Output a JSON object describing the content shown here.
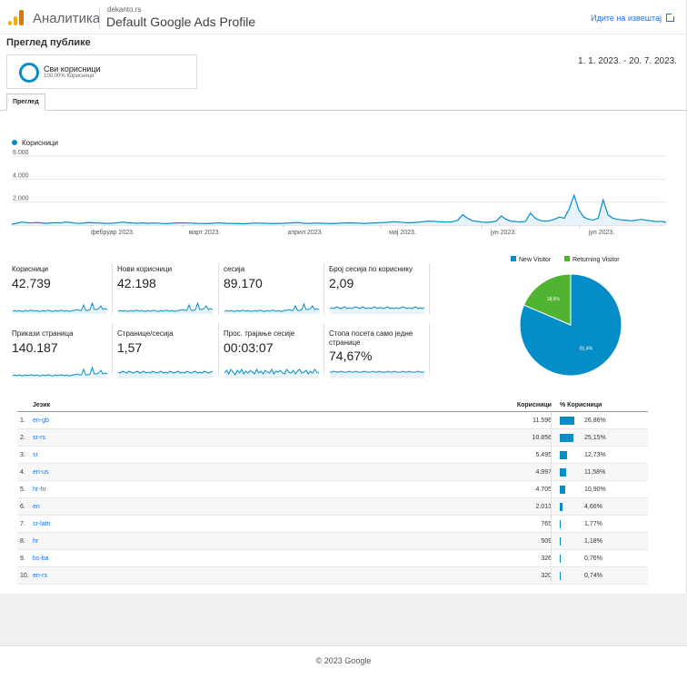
{
  "header": {
    "app_name": "Аналитика",
    "account": "dekanto.rs",
    "property": "Default Google Ads Profile",
    "goto_report": "Идите на извештај",
    "colors": {
      "logo_light": "#fbbc04",
      "logo_dark": "#f9ab00",
      "link": "#1a73e8"
    }
  },
  "page_title": "Преглед публике",
  "segment": {
    "name": "Сви корисници",
    "share": "100,00% Корисници"
  },
  "date_range": "1. 1. 2023. - 20. 7. 2023.",
  "tabs": [
    "Преглед"
  ],
  "chart_data": [
    {
      "type": "line",
      "legend": [
        "Корисници"
      ],
      "x_tick_labels": [
        "фебруар 2023.",
        "март 2023.",
        "април 2023.",
        "мај 2023.",
        "јун 2023.",
        "јул 2023."
      ],
      "y_tick_labels": [
        "2.000",
        "4.000",
        "6.000"
      ],
      "ylim": [
        0,
        6000
      ],
      "grid": true,
      "color": "#058dc7",
      "series": [
        {
          "name": "Корисници",
          "values": [
            80,
            160,
            250,
            220,
            180,
            230,
            200,
            150,
            190,
            210,
            180,
            260,
            240,
            170,
            140,
            190,
            230,
            200,
            180,
            160,
            150,
            170,
            210,
            260,
            200,
            180,
            160,
            200,
            150,
            180,
            170,
            140,
            130,
            160,
            190,
            200,
            180,
            170,
            150,
            140,
            130,
            150,
            180,
            190,
            160,
            150,
            140,
            130,
            120,
            150,
            180,
            170,
            160,
            140,
            130,
            150,
            160,
            180,
            200,
            220,
            170,
            150,
            160,
            180,
            160,
            140,
            130,
            150,
            170,
            190,
            200,
            180,
            160,
            150,
            170,
            190,
            210,
            230,
            260,
            300,
            250,
            220,
            200,
            230,
            260,
            300,
            350,
            330,
            300,
            280,
            260,
            300,
            420,
            900,
            600,
            380,
            320,
            260,
            240,
            280,
            360,
            800,
            500,
            350,
            300,
            280,
            330,
            1050,
            600,
            400,
            340,
            380,
            520,
            700,
            600,
            1400,
            2600,
            1300,
            700,
            500,
            450,
            600,
            2200,
            900,
            600,
            500,
            450,
            400,
            380,
            450,
            500,
            420,
            360,
            300,
            330,
            240
          ]
        }
      ]
    },
    {
      "type": "pie",
      "legend": [
        "New Visitor",
        "Returning Visitor"
      ],
      "values": [
        81.4,
        18.6
      ],
      "slice_labels": [
        "81,4%",
        "18,6%"
      ],
      "colors": [
        "#058dc7",
        "#50b432"
      ]
    }
  ],
  "metrics": [
    {
      "label": "Корисници",
      "value": "42.739"
    },
    {
      "label": "Нови корисници",
      "value": "42.198"
    },
    {
      "label": "сесија",
      "value": "89.170"
    },
    {
      "label": "Број сесија по кориснику",
      "value": "2,09"
    },
    {
      "label": "Прикази страница",
      "value": "140.187"
    },
    {
      "label": "Странице/сесија",
      "value": "1,57"
    },
    {
      "label": "Прос. трајање сесије",
      "value": "00:03:07"
    },
    {
      "label": "Стопа посета само једне странице",
      "value": "74,67%"
    }
  ],
  "table": {
    "headers": {
      "dimension": "Језик",
      "metric": "Корисници",
      "share": "% Корисници"
    },
    "rows": [
      {
        "idx": "1.",
        "lang": "en-gb",
        "users": "11.596",
        "pct": "26,86%",
        "share": 26.86
      },
      {
        "idx": "2.",
        "lang": "sr-rs",
        "users": "10.856",
        "pct": "25,15%",
        "share": 25.15
      },
      {
        "idx": "3.",
        "lang": "sr",
        "users": "5.495",
        "pct": "12,73%",
        "share": 12.73
      },
      {
        "idx": "4.",
        "lang": "en-us",
        "users": "4.997",
        "pct": "11,58%",
        "share": 11.58
      },
      {
        "idx": "5.",
        "lang": "hr-hr",
        "users": "4.705",
        "pct": "10,90%",
        "share": 10.9
      },
      {
        "idx": "6.",
        "lang": "en",
        "users": "2.013",
        "pct": "4,66%",
        "share": 4.66
      },
      {
        "idx": "7.",
        "lang": "sr-latn",
        "users": "765",
        "pct": "1,77%",
        "share": 1.77
      },
      {
        "idx": "8.",
        "lang": "hr",
        "users": "509",
        "pct": "1,18%",
        "share": 1.18
      },
      {
        "idx": "9.",
        "lang": "bs-ba",
        "users": "326",
        "pct": "0,76%",
        "share": 0.76
      },
      {
        "idx": "10.",
        "lang": "en-rs",
        "users": "320",
        "pct": "0,74%",
        "share": 0.74
      }
    ]
  },
  "footer": "© 2023 Google"
}
